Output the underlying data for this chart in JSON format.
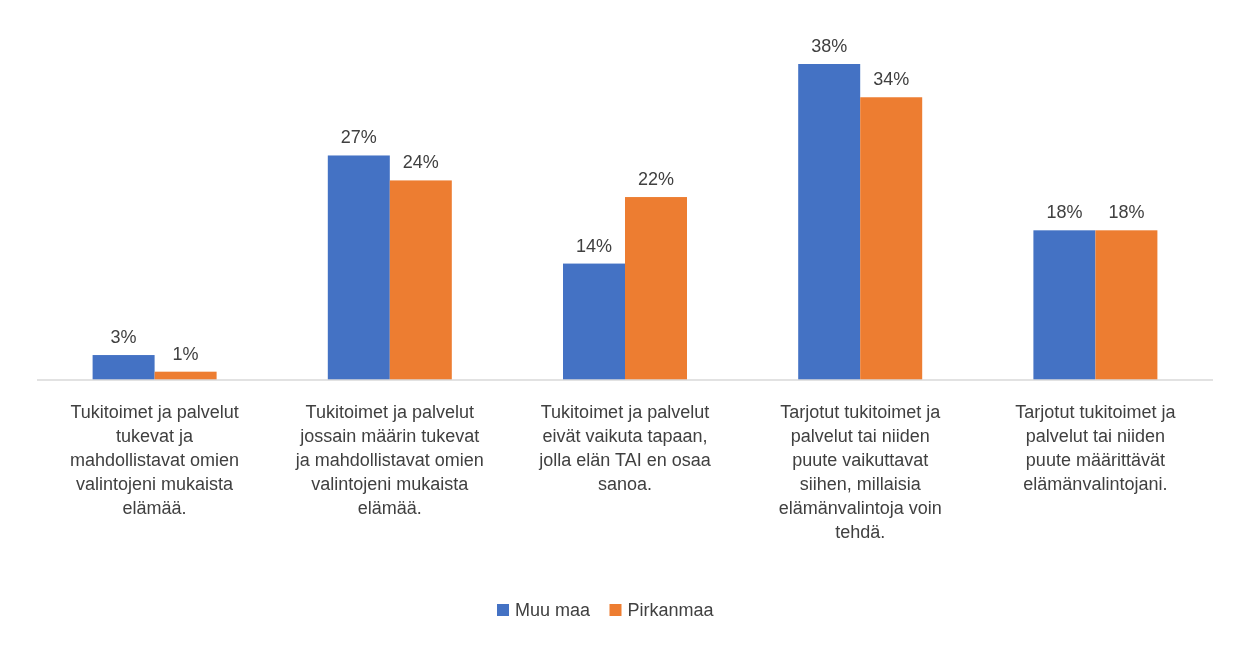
{
  "chart_data": {
    "type": "bar",
    "relative": false,
    "categories": [
      "Tukitoimet ja palvelut tukevat ja mahdollistavat omien valintojeni mukaista elämää.",
      "Tukitoimet ja palvelut jossain määrin tukevat ja mahdollistavat omien valintojeni mukaista elämää.",
      "Tukitoimet ja palvelut eivät vaikuta tapaan, jolla elän TAI en osaa sanoa.",
      "Tarjotut tukitoimet ja palvelut tai niiden puute vaikuttavat siihen, millaisia elämänvalintoja voin tehdä.",
      "Tarjotut tukitoimet ja palvelut tai niiden puute määrittävät elämänvalintojani."
    ],
    "series": [
      {
        "name": "Muu maa",
        "color": "#4472c4",
        "values": [
          3,
          27,
          14,
          38,
          18
        ],
        "value_labels": [
          "3%",
          "27%",
          "14%",
          "38%",
          "18%"
        ]
      },
      {
        "name": "Pirkanmaa",
        "color": "#ed7d31",
        "values": [
          1,
          24,
          22,
          34,
          18
        ],
        "value_labels": [
          "1%",
          "24%",
          "22%",
          "34%",
          "18%"
        ]
      }
    ],
    "legend": "bottom"
  }
}
